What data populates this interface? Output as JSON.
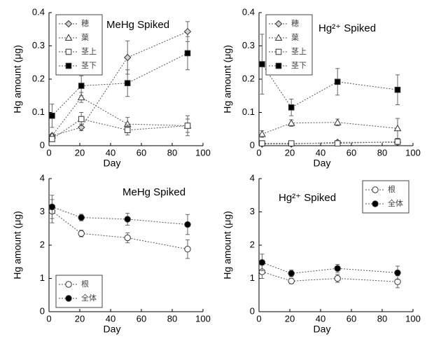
{
  "chart_data": [
    {
      "type": "line",
      "title": "MeHg Spiked",
      "xlabel": "Day",
      "ylabel": "Hg amount (μg)",
      "x": [
        2,
        21,
        51,
        90
      ],
      "xlim": [
        0,
        100
      ],
      "xticks": [
        0,
        20,
        40,
        60,
        80,
        100
      ],
      "ylim": [
        0,
        0.4
      ],
      "yticks": [
        0,
        0.1,
        0.2,
        0.3,
        0.4
      ],
      "legend": "upper left",
      "series": [
        {
          "name": "穂",
          "color": "#555555",
          "marker": "diamond",
          "fill": "#d0d0d0",
          "values": [
            0.03,
            0.055,
            0.265,
            0.343
          ],
          "errors": [
            0.005,
            0.01,
            0.05,
            0.03
          ]
        },
        {
          "name": "葉",
          "color": "#555555",
          "marker": "triangle",
          "fill": "#ffffff",
          "values": [
            0.03,
            0.145,
            0.065,
            0.06
          ],
          "errors": [
            0.005,
            0.015,
            0.02,
            0.03
          ]
        },
        {
          "name": "茎上",
          "color": "#555555",
          "marker": "square",
          "fill": "#ffffff",
          "values": [
            0.02,
            0.08,
            0.047,
            0.06
          ],
          "errors": [
            0.005,
            0.02,
            0.015,
            0.02
          ]
        },
        {
          "name": "茎下",
          "color": "#555555",
          "marker": "square",
          "fill": "#000000",
          "values": [
            0.09,
            0.18,
            0.188,
            0.278
          ],
          "errors": [
            0.035,
            0.03,
            0.04,
            0.05
          ]
        }
      ]
    },
    {
      "type": "line",
      "title": "Hg²⁺ Spiked",
      "xlabel": "Day",
      "ylabel": "Hg amount (μg)",
      "x": [
        2,
        21,
        51,
        90
      ],
      "xlim": [
        0,
        100
      ],
      "xticks": [
        0,
        20,
        40,
        60,
        80,
        100
      ],
      "ylim": [
        0,
        0.4
      ],
      "yticks": [
        0,
        0.1,
        0.2,
        0.3,
        0.4
      ],
      "legend": "upper left",
      "series": [
        {
          "name": "穂",
          "color": "#555555",
          "marker": "diamond",
          "fill": "#d0d0d0",
          "values": [
            0.005,
            0.005,
            0.01,
            0.01
          ],
          "errors": [
            0.002,
            0.002,
            0.004,
            0.004
          ]
        },
        {
          "name": "葉",
          "color": "#555555",
          "marker": "triangle",
          "fill": "#ffffff",
          "values": [
            0.035,
            0.068,
            0.07,
            0.052
          ],
          "errors": [
            0.01,
            0.01,
            0.01,
            0.03
          ]
        },
        {
          "name": "茎上",
          "color": "#555555",
          "marker": "square",
          "fill": "#ffffff",
          "values": [
            0.007,
            0.007,
            0.007,
            0.012
          ],
          "errors": [
            0.003,
            0.003,
            0.003,
            0.005
          ]
        },
        {
          "name": "茎下",
          "color": "#555555",
          "marker": "square",
          "fill": "#000000",
          "values": [
            0.245,
            0.115,
            0.192,
            0.168
          ],
          "errors": [
            0.09,
            0.025,
            0.04,
            0.045
          ]
        }
      ]
    },
    {
      "type": "line",
      "title": "MeHg Spiked",
      "xlabel": "Day",
      "ylabel": "Hg amount (μg)",
      "x": [
        2,
        21,
        51,
        90
      ],
      "xlim": [
        0,
        100
      ],
      "xticks": [
        0,
        20,
        40,
        60,
        80,
        100
      ],
      "ylim": [
        0,
        4
      ],
      "yticks": [
        0,
        1,
        2,
        3,
        4
      ],
      "legend": "lower left",
      "series": [
        {
          "name": "根",
          "color": "#555555",
          "marker": "circle",
          "fill": "#ffffff",
          "values": [
            3.02,
            2.35,
            2.22,
            1.88
          ],
          "errors": [
            0.35,
            0.1,
            0.15,
            0.28
          ]
        },
        {
          "name": "全体",
          "color": "#555555",
          "marker": "circle",
          "fill": "#000000",
          "values": [
            3.15,
            2.83,
            2.78,
            2.62
          ],
          "errors": [
            0.35,
            0.1,
            0.18,
            0.3
          ]
        }
      ]
    },
    {
      "type": "line",
      "title": "Hg²⁺ Spiked",
      "xlabel": "Day",
      "ylabel": "Hg amount (μg)",
      "x": [
        2,
        21,
        51,
        90
      ],
      "xlim": [
        0,
        100
      ],
      "xticks": [
        0,
        20,
        40,
        60,
        80,
        100
      ],
      "ylim": [
        0,
        4
      ],
      "yticks": [
        0,
        1,
        2,
        3,
        4
      ],
      "legend": "upper right",
      "series": [
        {
          "name": "根",
          "color": "#555555",
          "marker": "circle",
          "fill": "#ffffff",
          "values": [
            1.2,
            0.92,
            1.0,
            0.9
          ],
          "errors": [
            0.2,
            0.08,
            0.12,
            0.18
          ]
        },
        {
          "name": "全体",
          "color": "#555555",
          "marker": "circle",
          "fill": "#000000",
          "values": [
            1.48,
            1.15,
            1.3,
            1.17
          ],
          "errors": [
            0.25,
            0.1,
            0.12,
            0.2
          ]
        }
      ]
    }
  ]
}
